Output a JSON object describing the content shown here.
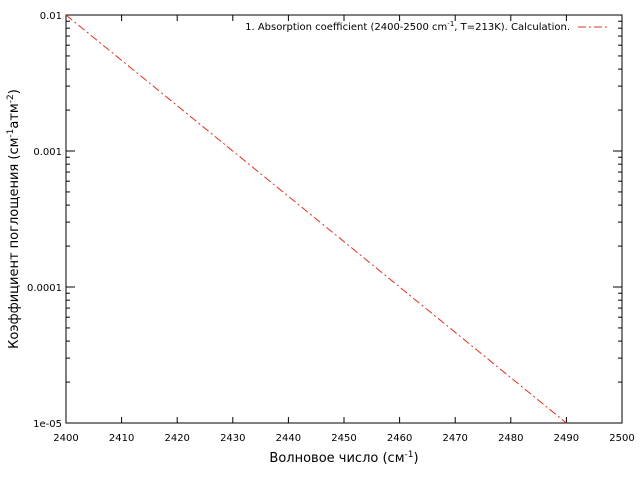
{
  "chart_data": {
    "type": "line",
    "x_scale": "linear",
    "y_scale": "log",
    "xlim": [
      2400,
      2500
    ],
    "ylim": [
      1e-05,
      0.01
    ],
    "x_ticks": [
      2400,
      2410,
      2420,
      2430,
      2440,
      2450,
      2460,
      2470,
      2480,
      2490,
      2500
    ],
    "x_tick_labels": [
      "2400",
      "2410",
      "2420",
      "2430",
      "2440",
      "2450",
      "2460",
      "2470",
      "2480",
      "2490",
      "2500"
    ],
    "y_ticks": [
      1e-05,
      0.0001,
      0.001,
      0.01
    ],
    "y_tick_labels": [
      "1e-05",
      "0.0001",
      "0.001",
      "0.01"
    ],
    "xlabel": {
      "main": "Волновое число (см",
      "sup": "-1",
      "end": ")"
    },
    "ylabel": {
      "main": "Коэффициент поглощения (см",
      "sup1": "-1",
      "mid": "атм",
      "sup2": "-2",
      "end": ")"
    },
    "grid": false,
    "legend_position": "top-right",
    "series": [
      {
        "name": {
          "pre": "1. Absorption coefficient (2400-2500 cm",
          "sup": "-1",
          "post": ", T=213K). Calculation."
        },
        "color": "#e0301e",
        "line_style": "dash-dot",
        "x": [
          2400,
          2490
        ],
        "y": [
          0.01,
          1e-05
        ]
      }
    ]
  }
}
